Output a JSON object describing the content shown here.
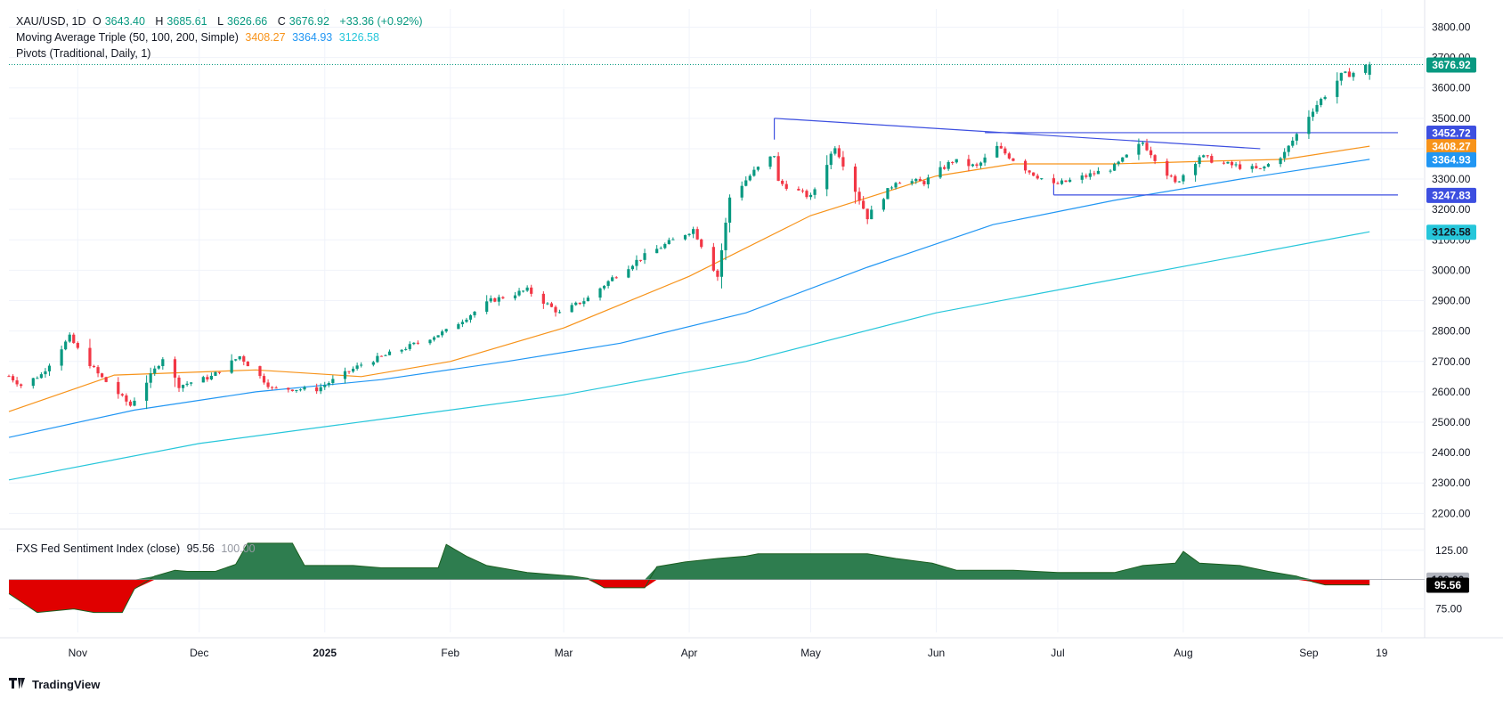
{
  "header": {
    "symbol": "XAU/USD, 1D",
    "ohlc": {
      "o_label": "O",
      "o": "3643.40",
      "h_label": "H",
      "h": "3685.61",
      "l_label": "L",
      "l": "3626.66",
      "c_label": "C",
      "c": "3676.92",
      "change": "+33.36 (+0.92%)"
    },
    "ma_label": "Moving Average Triple (50, 100, 200, Simple)",
    "ma_values": {
      "ma50": "3408.27",
      "ma100": "3364.93",
      "ma200": "3126.58"
    },
    "pivots_label": "Pivots (Traditional, Daily, 1)",
    "indicator_label": "FXS Fed Sentiment Index (close)",
    "indicator_value": "95.56",
    "indicator_ref": "100.00"
  },
  "brand": {
    "name": "TradingView"
  },
  "colors": {
    "up": "#089981",
    "down": "#f23645",
    "ma50": "#f7931a",
    "ma100": "#2196f3",
    "ma200": "#26c6da",
    "trendline": "#3d4fe0",
    "sentiment_pos": "#2e7d4f",
    "sentiment_neg": "#e00000",
    "grid": "#f0f3fa"
  },
  "chart_data": {
    "type": "candlestick",
    "price_axis": {
      "ylim": [
        2160,
        3860
      ],
      "ticks": [
        2200,
        2300,
        2400,
        2500,
        2600,
        2700,
        2800,
        2900,
        3000,
        3100,
        3200,
        3300,
        3400,
        3500,
        3600,
        3700,
        3800
      ]
    },
    "x_axis": {
      "labels": [
        "Nov",
        "Dec",
        "2025",
        "Feb",
        "Mar",
        "Apr",
        "May",
        "Jun",
        "Jul",
        "Aug",
        "Sep",
        "19"
      ]
    },
    "anchors": [
      [
        "2024-10-15",
        2652
      ],
      [
        "2024-10-18",
        2621
      ],
      [
        "2024-10-23",
        2657
      ],
      [
        "2024-10-30",
        2780
      ],
      [
        "2024-11-01",
        2740
      ],
      [
        "2024-11-06",
        2659
      ],
      [
        "2024-11-14",
        2555
      ],
      [
        "2024-11-22",
        2712
      ],
      [
        "2024-11-26",
        2620
      ],
      [
        "2024-12-04",
        2650
      ],
      [
        "2024-12-11",
        2717
      ],
      [
        "2024-12-19",
        2610
      ],
      [
        "2024-12-30",
        2608
      ],
      [
        "2025-01-10",
        2690
      ],
      [
        "2025-01-21",
        2745
      ],
      [
        "2025-01-31",
        2800
      ],
      [
        "2025-02-11",
        2900
      ],
      [
        "2025-02-20",
        2935
      ],
      [
        "2025-02-28",
        2858
      ],
      [
        "2025-03-07",
        2908
      ],
      [
        "2025-03-14",
        2985
      ],
      [
        "2025-03-20",
        3040
      ],
      [
        "2025-04-02",
        3135
      ],
      [
        "2025-04-08",
        2980
      ],
      [
        "2025-04-11",
        3240
      ],
      [
        "2025-04-17",
        3325
      ],
      [
        "2025-04-22",
        3380
      ],
      [
        "2025-04-23",
        3290
      ],
      [
        "2025-05-01",
        3240
      ],
      [
        "2025-05-07",
        3410
      ],
      [
        "2025-05-15",
        3175
      ],
      [
        "2025-05-22",
        3295
      ],
      [
        "2025-05-29",
        3290
      ],
      [
        "2025-06-05",
        3360
      ],
      [
        "2025-06-11",
        3340
      ],
      [
        "2025-06-16",
        3405
      ],
      [
        "2025-06-24",
        3325
      ],
      [
        "2025-06-30",
        3280
      ],
      [
        "2025-07-08",
        3310
      ],
      [
        "2025-07-15",
        3340
      ],
      [
        "2025-07-22",
        3420
      ],
      [
        "2025-07-30",
        3285
      ],
      [
        "2025-08-05",
        3375
      ],
      [
        "2025-08-11",
        3350
      ],
      [
        "2025-08-20",
        3330
      ],
      [
        "2025-08-26",
        3385
      ],
      [
        "2025-09-02",
        3530
      ],
      [
        "2025-09-09",
        3640
      ],
      [
        "2025-09-12",
        3650
      ],
      [
        "2025-09-16",
        3676.92
      ]
    ],
    "last_candle": {
      "date": "2025-09-16",
      "open": 3643.4,
      "high": 3685.61,
      "low": 3626.66,
      "close": 3676.92
    },
    "series": [
      {
        "name": "MA 50",
        "color": "#f7931a",
        "points": [
          [
            "2024-10-15",
            2535
          ],
          [
            "2024-11-10",
            2655
          ],
          [
            "2024-12-15",
            2672
          ],
          [
            "2025-01-10",
            2650
          ],
          [
            "2025-02-01",
            2700
          ],
          [
            "2025-03-01",
            2810
          ],
          [
            "2025-04-01",
            2980
          ],
          [
            "2025-05-01",
            3180
          ],
          [
            "2025-06-01",
            3310
          ],
          [
            "2025-06-20",
            3350
          ],
          [
            "2025-07-15",
            3350
          ],
          [
            "2025-08-10",
            3360
          ],
          [
            "2025-08-26",
            3365
          ],
          [
            "2025-09-16",
            3408.27
          ]
        ],
        "last": "3408.27"
      },
      {
        "name": "MA 100",
        "color": "#2196f3",
        "points": [
          [
            "2024-10-15",
            2450
          ],
          [
            "2024-11-15",
            2540
          ],
          [
            "2024-12-15",
            2600
          ],
          [
            "2025-01-15",
            2640
          ],
          [
            "2025-02-15",
            2700
          ],
          [
            "2025-03-15",
            2760
          ],
          [
            "2025-04-15",
            2860
          ],
          [
            "2025-05-15",
            3010
          ],
          [
            "2025-06-15",
            3150
          ],
          [
            "2025-07-15",
            3230
          ],
          [
            "2025-08-15",
            3300
          ],
          [
            "2025-09-16",
            3364.93
          ]
        ],
        "last": "3364.93"
      },
      {
        "name": "MA 200",
        "color": "#26c6da",
        "points": [
          [
            "2024-10-15",
            2310
          ],
          [
            "2024-12-01",
            2430
          ],
          [
            "2025-01-15",
            2510
          ],
          [
            "2025-03-01",
            2590
          ],
          [
            "2025-04-15",
            2700
          ],
          [
            "2025-06-01",
            2860
          ],
          [
            "2025-07-15",
            2970
          ],
          [
            "2025-09-16",
            3126.58
          ]
        ],
        "last": "3126.58"
      }
    ],
    "trendlines": [
      {
        "from": [
          "2025-04-22",
          3500
        ],
        "to": [
          "2025-08-20",
          3400
        ]
      },
      {
        "from": [
          "2025-06-13",
          3452.72
        ],
        "to": [
          "2025-09-23",
          3452.72
        ]
      },
      {
        "from": [
          "2025-06-30",
          3247.83
        ],
        "to": [
          "2025-09-23",
          3247.83
        ]
      },
      {
        "from": [
          "2025-06-30",
          3247.83
        ],
        "to": [
          "2025-06-30",
          3305
        ]
      },
      {
        "from": [
          "2025-04-22",
          3500
        ],
        "to": [
          "2025-04-22",
          3430
        ]
      }
    ],
    "price_badges": [
      {
        "value": "3676.92",
        "bg": "#089981",
        "fg": "#ffffff"
      },
      {
        "value": "3452.72",
        "bg": "#3d4fe0",
        "fg": "#ffffff"
      },
      {
        "value": "3408.27",
        "bg": "#f7931a",
        "fg": "#ffffff"
      },
      {
        "value": "3364.93",
        "bg": "#2196f3",
        "fg": "#ffffff"
      },
      {
        "value": "3247.83",
        "bg": "#3d4fe0",
        "fg": "#ffffff"
      },
      {
        "value": "3126.58",
        "bg": "#26c6da",
        "fg": "#131722"
      }
    ],
    "sentiment": {
      "ylim": [
        55,
        140
      ],
      "ticks": [
        125.0,
        100.0,
        75.0
      ],
      "tick_labels": [
        "125.00",
        "100.00",
        "75.00"
      ],
      "baseline": 100,
      "points": [
        [
          "2024-10-15",
          88
        ],
        [
          "2024-10-22",
          72
        ],
        [
          "2024-10-31",
          75
        ],
        [
          "2024-11-05",
          72
        ],
        [
          "2024-11-12",
          72
        ],
        [
          "2024-11-15",
          92
        ],
        [
          "2024-11-20",
          103
        ],
        [
          "2024-11-25",
          108
        ],
        [
          "2024-11-28",
          107
        ],
        [
          "2024-12-05",
          107
        ],
        [
          "2024-12-10",
          113
        ],
        [
          "2024-12-13",
          131
        ],
        [
          "2024-12-24",
          131
        ],
        [
          "2024-12-27",
          112
        ],
        [
          "2025-01-08",
          112
        ],
        [
          "2025-01-15",
          110
        ],
        [
          "2025-01-29",
          110
        ],
        [
          "2025-01-31",
          130
        ],
        [
          "2025-02-05",
          120
        ],
        [
          "2025-02-10",
          112
        ],
        [
          "2025-02-20",
          106
        ],
        [
          "2025-03-03",
          103
        ],
        [
          "2025-03-07",
          101
        ],
        [
          "2025-03-11",
          93
        ],
        [
          "2025-03-21",
          93
        ],
        [
          "2025-03-24",
          111
        ],
        [
          "2025-03-31",
          115
        ],
        [
          "2025-04-08",
          118
        ],
        [
          "2025-04-15",
          120
        ],
        [
          "2025-04-18",
          122
        ],
        [
          "2025-05-15",
          122
        ],
        [
          "2025-05-22",
          118
        ],
        [
          "2025-05-31",
          114
        ],
        [
          "2025-06-06",
          108
        ],
        [
          "2025-06-20",
          108
        ],
        [
          "2025-07-01",
          106
        ],
        [
          "2025-07-15",
          106
        ],
        [
          "2025-07-22",
          112
        ],
        [
          "2025-07-30",
          114
        ],
        [
          "2025-08-01",
          124
        ],
        [
          "2025-08-05",
          114
        ],
        [
          "2025-08-15",
          112
        ],
        [
          "2025-08-22",
          107
        ],
        [
          "2025-08-29",
          103
        ],
        [
          "2025-09-02",
          98
        ],
        [
          "2025-09-05",
          95.56
        ],
        [
          "2025-09-16",
          95.56
        ]
      ],
      "badges": [
        {
          "value": "100.00",
          "bg": "#b2b5be",
          "fg": "#131722"
        },
        {
          "value": "95.56",
          "bg": "#000000",
          "fg": "#ffffff"
        }
      ]
    }
  }
}
